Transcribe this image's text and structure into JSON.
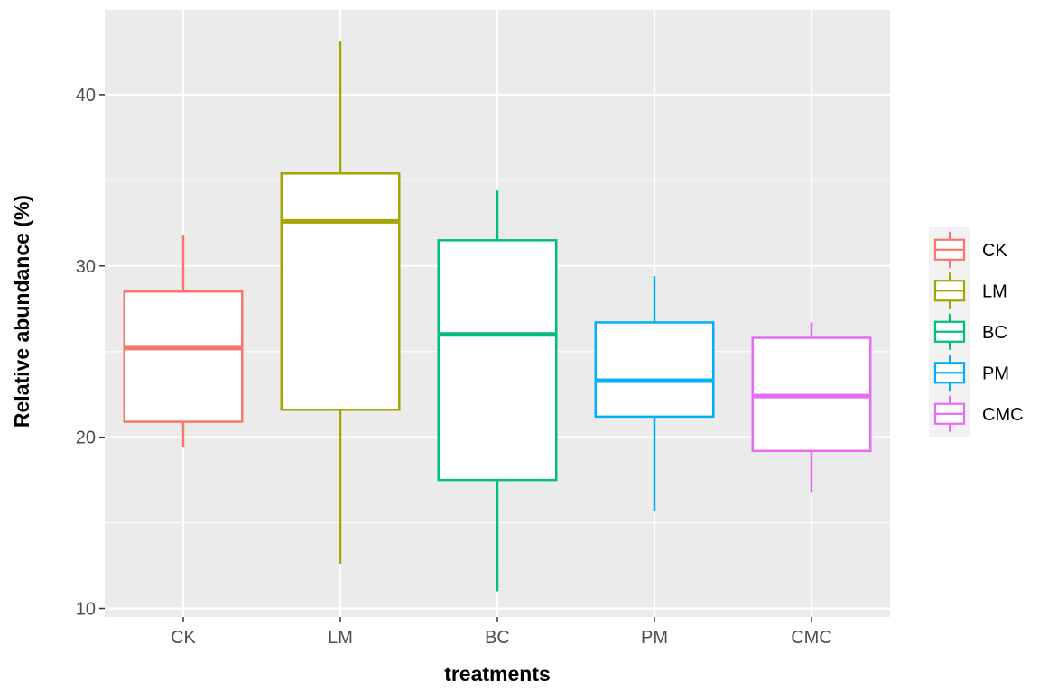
{
  "chart_data": {
    "type": "boxplot",
    "xlabel": "treatments",
    "ylabel": "Relative abundance (%)",
    "categories": [
      "CK",
      "LM",
      "BC",
      "PM",
      "CMC"
    ],
    "ylim": [
      9.5,
      45
    ],
    "yticks": [
      10,
      20,
      30,
      40
    ],
    "grid": true,
    "legend_position": "right",
    "legend": [
      "CK",
      "LM",
      "BC",
      "PM",
      "CMC"
    ],
    "colors": [
      "#f8766d",
      "#a3a500",
      "#00bf7d",
      "#00b0f6",
      "#e76bf3"
    ],
    "series": [
      {
        "name": "CK",
        "whisker_low": 19.4,
        "q1": 20.9,
        "median": 25.2,
        "q3": 28.5,
        "whisker_high": 31.8
      },
      {
        "name": "LM",
        "whisker_low": 12.6,
        "q1": 21.6,
        "median": 32.6,
        "q3": 35.4,
        "whisker_high": 43.1
      },
      {
        "name": "BC",
        "whisker_low": 11.0,
        "q1": 17.5,
        "median": 26.0,
        "q3": 31.5,
        "whisker_high": 34.4
      },
      {
        "name": "PM",
        "whisker_low": 15.7,
        "q1": 21.2,
        "median": 23.3,
        "q3": 26.7,
        "whisker_high": 29.4
      },
      {
        "name": "CMC",
        "whisker_low": 16.8,
        "q1": 19.2,
        "median": 22.4,
        "q3": 25.8,
        "whisker_high": 26.7
      }
    ]
  }
}
